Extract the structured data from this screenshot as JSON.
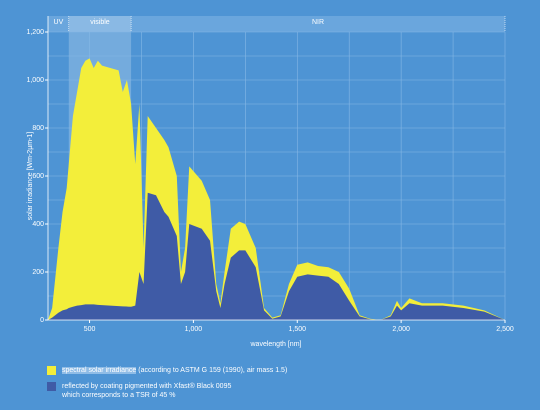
{
  "chart_data": {
    "type": "area",
    "xlabel": "wavelength [nm]",
    "ylabel": "solar irradiance [Wm-2µm-1]",
    "regions": [
      {
        "label": "UV",
        "from": 300,
        "to": 400
      },
      {
        "label": "visible",
        "from": 400,
        "to": 700,
        "shaded": true
      },
      {
        "label": "NIR",
        "from": 700,
        "to": 2500
      }
    ],
    "x": [
      300,
      320,
      350,
      370,
      390,
      400,
      420,
      440,
      460,
      480,
      500,
      520,
      540,
      560,
      600,
      640,
      660,
      680,
      700,
      720,
      740,
      760,
      780,
      820,
      860,
      880,
      920,
      940,
      960,
      980,
      1040,
      1080,
      1110,
      1130,
      1150,
      1180,
      1220,
      1250,
      1300,
      1340,
      1380,
      1420,
      1460,
      1500,
      1550,
      1600,
      1650,
      1700,
      1750,
      1800,
      1850,
      1900,
      1950,
      1980,
      2000,
      2040,
      2100,
      2200,
      2300,
      2400,
      2500
    ],
    "series": [
      {
        "name": "spectral solar irradiance",
        "note": "(according to ASTM G 159 (1990), air mass 1.5)",
        "color": "#f3ee3a",
        "values": [
          0,
          50,
          300,
          450,
          550,
          650,
          850,
          950,
          1050,
          1080,
          1090,
          1050,
          1080,
          1060,
          1050,
          1040,
          950,
          1000,
          900,
          650,
          900,
          300,
          850,
          800,
          750,
          720,
          600,
          200,
          300,
          640,
          580,
          500,
          150,
          70,
          200,
          380,
          410,
          400,
          300,
          50,
          10,
          20,
          150,
          230,
          240,
          225,
          220,
          200,
          130,
          20,
          5,
          0,
          20,
          80,
          50,
          90,
          70,
          70,
          60,
          40,
          0
        ]
      },
      {
        "name": "reflected by coating pigmented with Xfast® Black 0095 which corresponds to a TSR of 45 %",
        "color": "#3f5ba6",
        "values": [
          0,
          10,
          30,
          40,
          45,
          50,
          55,
          60,
          62,
          65,
          65,
          65,
          63,
          62,
          60,
          58,
          57,
          56,
          55,
          60,
          200,
          150,
          530,
          520,
          450,
          430,
          350,
          150,
          200,
          400,
          380,
          330,
          120,
          50,
          150,
          260,
          290,
          290,
          220,
          40,
          5,
          15,
          120,
          180,
          190,
          185,
          180,
          150,
          80,
          15,
          3,
          0,
          15,
          60,
          40,
          70,
          60,
          60,
          50,
          35,
          0
        ]
      }
    ],
    "xlim": [
      300,
      2500
    ],
    "ylim": [
      0,
      1200
    ],
    "xticks": [
      500,
      {
        "value": 1000,
        "label": "1,000"
      },
      {
        "value": 1500,
        "label": "1,500"
      },
      {
        "value": 2000,
        "label": "2,000"
      },
      {
        "value": 2500,
        "label": "2,500"
      }
    ],
    "yticks": [
      0,
      200,
      400,
      600,
      800,
      {
        "value": 1000,
        "label": "1,000"
      },
      {
        "value": 1200,
        "label": "1,200"
      }
    ],
    "minor_xticks": [
      750,
      1250,
      1750,
      2250
    ],
    "minor_yticks": [
      100,
      300,
      500,
      700,
      900,
      1100
    ],
    "grid": true
  }
}
